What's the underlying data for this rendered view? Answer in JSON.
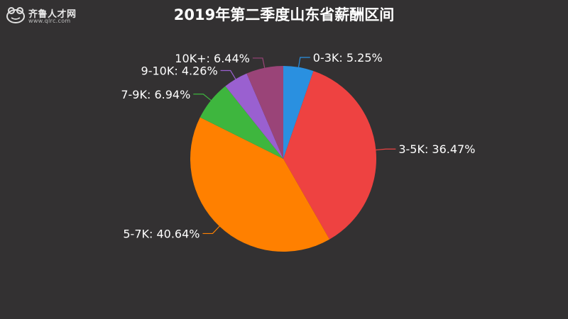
{
  "title": "2019年第二季度山东省薪酬区间",
  "logo": {
    "name": "齐鲁人才网",
    "url_text": "www.qlrc.com"
  },
  "chart_data": {
    "type": "pie",
    "title": "2019年第二季度山东省薪酬区间",
    "start_angle_deg": 0,
    "direction": "clockwise",
    "slices": [
      {
        "label": "0-3K: 5.25%",
        "category": "0-3K",
        "value": 5.25,
        "color": "#2a90e0"
      },
      {
        "label": "3-5K: 36.47%",
        "category": "3-5K",
        "value": 36.47,
        "color": "#ee4241"
      },
      {
        "label": "5-7K: 40.64%",
        "category": "5-7K",
        "value": 40.64,
        "color": "#ff8000"
      },
      {
        "label": "7-9K: 6.94%",
        "category": "7-9K",
        "value": 6.94,
        "color": "#3eb63e"
      },
      {
        "label": "9-10K: 4.26%",
        "category": "9-10K",
        "value": 4.26,
        "color": "#9a60d0"
      },
      {
        "label": "10K+: 6.44%",
        "category": "10K+",
        "value": 6.44,
        "color": "#9a4478"
      }
    ]
  }
}
